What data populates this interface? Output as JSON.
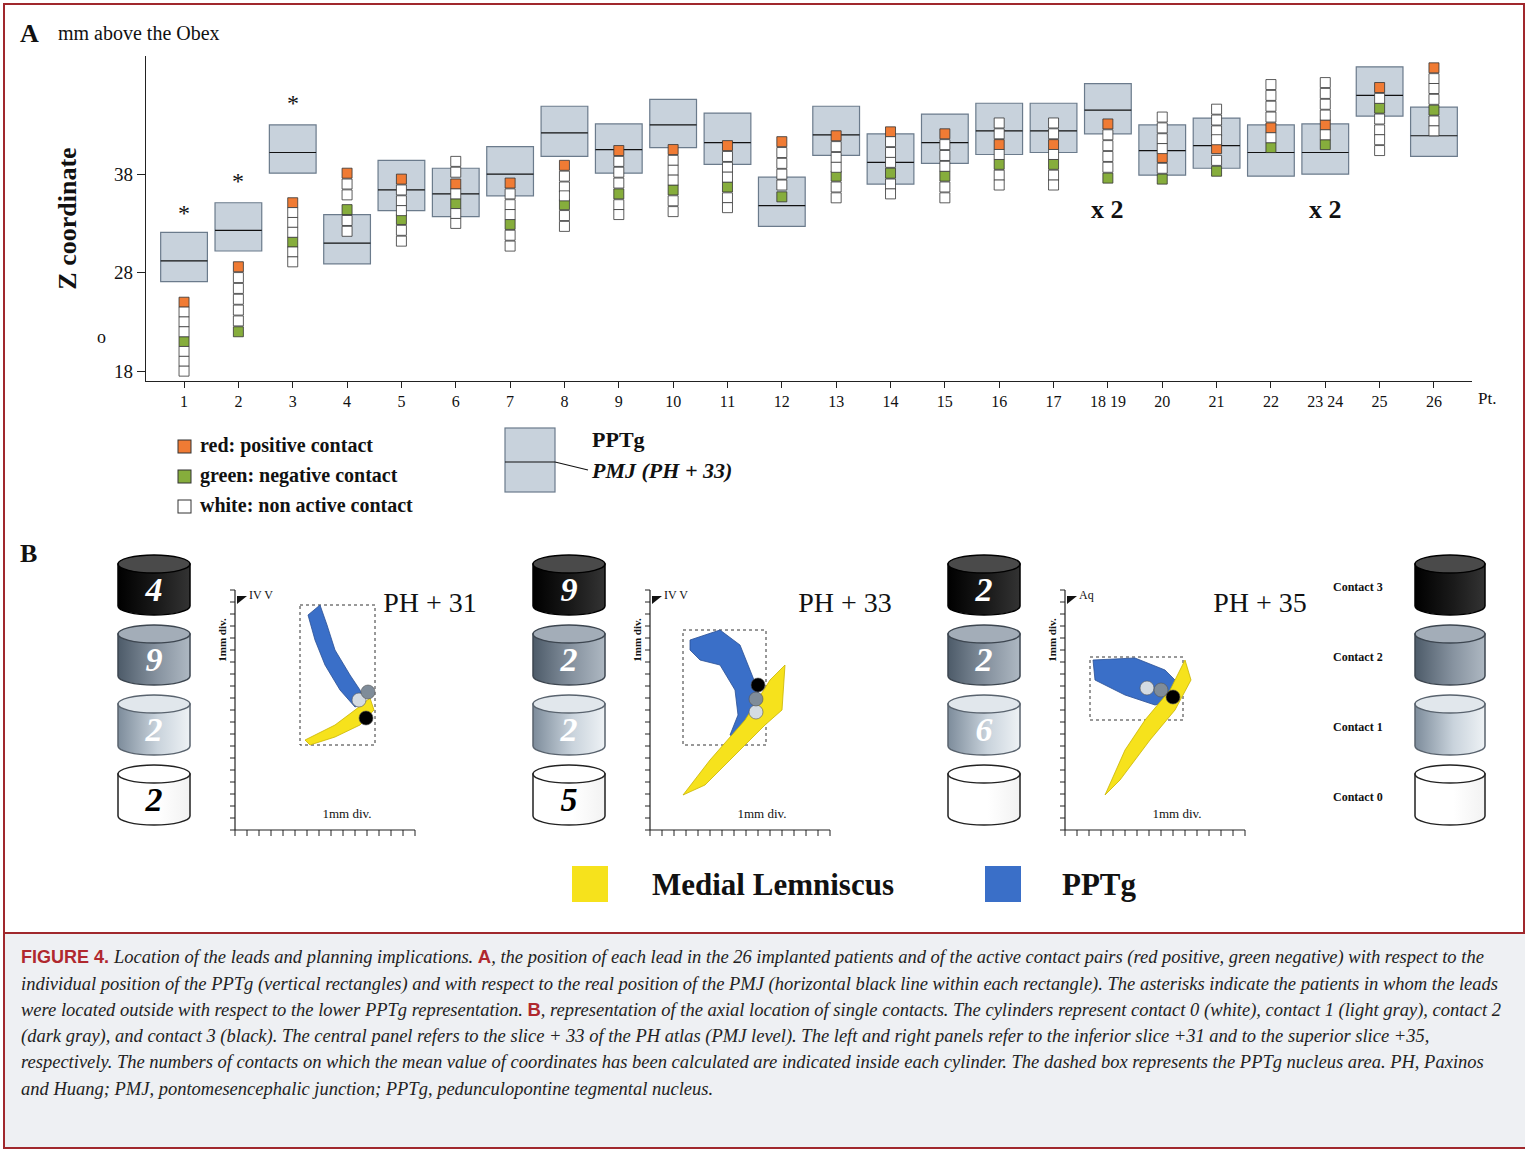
{
  "chart_data": {
    "type": "scatter",
    "panel": "A",
    "y_header": "mm above the Obex",
    "ylabel": "Z coordinate",
    "xlabel": "Pt.",
    "categories": [
      "1",
      "2",
      "3",
      "4",
      "5",
      "6",
      "7",
      "8",
      "9",
      "10",
      "11",
      "12",
      "13",
      "14",
      "15",
      "16",
      "17",
      "18 19",
      "20",
      "21",
      "22",
      "23 24",
      "25",
      "26"
    ],
    "ylim": [
      17,
      50
    ],
    "yticks": [
      18,
      28,
      38
    ],
    "grid": false,
    "legend": "bottom left",
    "series": [
      {
        "name": "red:  positive contact",
        "color": "#f07b34",
        "marker": "square",
        "x": [
          0,
          1,
          2,
          3,
          4,
          5,
          6,
          7,
          8,
          9,
          10,
          11,
          12,
          13,
          14,
          15,
          16,
          17,
          18,
          19,
          20,
          21,
          22,
          23
        ],
        "y": [
          25.0,
          28.6,
          35.1,
          38.1,
          37.5,
          37.0,
          37.1,
          38.9,
          40.4,
          40.5,
          40.9,
          41.3,
          41.9,
          42.3,
          42.1,
          41.0,
          41.0,
          43.1,
          39.7,
          40.6,
          42.7,
          43.0,
          46.8,
          48.8
        ]
      },
      {
        "name": "green: negative contact",
        "color": "#86ad3c",
        "marker": "square",
        "x": [
          0,
          1,
          2,
          3,
          4,
          5,
          6,
          7,
          8,
          9,
          10,
          11,
          12,
          13,
          14,
          15,
          16,
          17,
          18,
          19,
          20,
          21,
          22,
          23
        ],
        "y": [
          21.0,
          22.0,
          31.1,
          34.4,
          33.4,
          35.0,
          32.9,
          34.9,
          36.0,
          36.4,
          36.7,
          35.7,
          37.8,
          38.1,
          37.8,
          39.0,
          39.0,
          37.6,
          37.5,
          38.3,
          40.7,
          41.0,
          44.7,
          44.5
        ]
      },
      {
        "name": "white:  non active contact",
        "color": "#ffffff",
        "marker": "square",
        "x": [
          0,
          0,
          0,
          0,
          0,
          0,
          1,
          1,
          1,
          1,
          1,
          2,
          2,
          2,
          2,
          2,
          3,
          3,
          3,
          3,
          4,
          4,
          4,
          4,
          4,
          5,
          5,
          5,
          5,
          5,
          6,
          6,
          6,
          6,
          6,
          7,
          7,
          7,
          7,
          7,
          8,
          8,
          8,
          8,
          8,
          9,
          9,
          9,
          9,
          9,
          10,
          10,
          10,
          10,
          10,
          11,
          11,
          11,
          11,
          12,
          12,
          12,
          12,
          12,
          13,
          13,
          13,
          13,
          13,
          14,
          14,
          14,
          14,
          14,
          15,
          15,
          15,
          15,
          15,
          16,
          16,
          16,
          16,
          16,
          17,
          17,
          17,
          17,
          18,
          18,
          18,
          18,
          18,
          19,
          19,
          19,
          19,
          19,
          20,
          20,
          20,
          20,
          20,
          21,
          21,
          21,
          21,
          21,
          22,
          22,
          22,
          22,
          22,
          23,
          23,
          23,
          23,
          23
        ],
        "y": [
          24.0,
          23.0,
          22.0,
          20.0,
          19.0,
          18.0,
          27.5,
          26.4,
          25.3,
          24.2,
          23.1,
          34.1,
          33.1,
          32.1,
          30.1,
          29.1,
          37.0,
          35.9,
          33.3,
          32.2,
          36.4,
          35.3,
          34.3,
          32.3,
          31.2,
          39.3,
          38.2,
          36.0,
          34.0,
          33.0,
          36.0,
          34.9,
          33.9,
          31.8,
          30.7,
          37.8,
          36.7,
          35.8,
          33.8,
          32.7,
          39.3,
          38.2,
          37.1,
          34.9,
          33.9,
          39.4,
          38.4,
          37.4,
          35.3,
          34.2,
          39.8,
          38.7,
          37.7,
          35.6,
          34.6,
          40.2,
          39.1,
          38.0,
          36.9,
          40.8,
          39.7,
          38.7,
          36.7,
          35.6,
          41.3,
          40.2,
          39.2,
          37.0,
          36.0,
          41.0,
          39.9,
          38.8,
          36.7,
          35.6,
          43.2,
          42.1,
          40.0,
          37.9,
          36.9,
          43.2,
          42.1,
          40.0,
          37.9,
          36.9,
          42.0,
          40.9,
          39.8,
          38.7,
          43.8,
          42.7,
          41.6,
          40.6,
          38.6,
          44.6,
          43.5,
          42.4,
          41.5,
          39.4,
          47.1,
          46.0,
          44.9,
          43.8,
          41.7,
          47.3,
          46.2,
          45.1,
          44.0,
          42.0,
          45.7,
          43.6,
          42.5,
          41.5,
          40.4,
          47.7,
          46.7,
          45.6,
          43.4,
          42.4
        ]
      }
    ],
    "boxes": {
      "name": "PPTg",
      "line_name": "PMJ (PH + 33)",
      "color": "#c8d2dc",
      "x": [
        0,
        1,
        2,
        3,
        4,
        5,
        6,
        7,
        8,
        9,
        10,
        11,
        12,
        13,
        14,
        15,
        16,
        17,
        18,
        19,
        20,
        21,
        22,
        23
      ],
      "low": [
        27.1,
        30.2,
        38.1,
        28.9,
        34.3,
        33.7,
        35.8,
        39.8,
        38.1,
        40.7,
        39.0,
        32.7,
        39.9,
        37.0,
        39.1,
        40.0,
        40.2,
        42.1,
        37.9,
        38.6,
        37.8,
        38.0,
        43.9,
        39.8
      ],
      "high": [
        32.1,
        35.1,
        43.0,
        33.9,
        39.4,
        38.6,
        40.8,
        44.9,
        43.1,
        45.6,
        44.2,
        37.7,
        44.9,
        42.1,
        44.1,
        45.2,
        45.2,
        47.2,
        43.0,
        43.7,
        43.0,
        43.1,
        48.9,
        44.8
      ],
      "line": [
        29.2,
        32.3,
        40.2,
        31.0,
        36.4,
        36.0,
        38.0,
        42.2,
        40.5,
        43.0,
        41.2,
        34.8,
        42.0,
        39.2,
        41.2,
        42.4,
        42.4,
        44.5,
        40.4,
        40.9,
        40.2,
        40.2,
        46.0,
        41.9
      ]
    },
    "annotations": [
      {
        "text": "*",
        "x": 0,
        "y": 34.1
      },
      {
        "text": "*",
        "x": 1,
        "y": 37.3
      },
      {
        "text": "*",
        "x": 2,
        "y": 45.2
      },
      {
        "text": "x 2",
        "x": 17,
        "y": 34.4
      },
      {
        "text": "x 2",
        "x": 21,
        "y": 34.4
      },
      {
        "text": "o",
        "y": 21.5
      }
    ]
  },
  "panel_b": {
    "letter": "B",
    "slices": [
      {
        "title": "PH + 31",
        "landmark": "IV V",
        "axis_label": "1mm div.",
        "counts": [
          4,
          9,
          2,
          2
        ]
      },
      {
        "title": "PH + 33",
        "landmark": "IV V",
        "axis_label": "1mm div.",
        "counts": [
          9,
          2,
          2,
          5
        ]
      },
      {
        "title": "PH + 35",
        "landmark": "Aq",
        "axis_label": "1mm div.",
        "counts": [
          2,
          2,
          6,
          null
        ]
      }
    ],
    "key": [
      "Contact 3",
      "Contact 2",
      "Contact 1",
      "Contact 0"
    ],
    "legend": [
      {
        "label": "Medial Lemniscus",
        "color": "#f6e21c"
      },
      {
        "label": "PPTg",
        "color": "#3a6fc8"
      }
    ]
  },
  "caption": {
    "label": "FIGURE 4.",
    "segments": [
      {
        "text": "Location of the leads and planning implications. ",
        "bold": false
      },
      {
        "text": "A",
        "bold": true
      },
      {
        "text": ", the position of each lead in the 26 implanted patients and of the active contact pairs (red positive, green negative) with respect to the individual position of the PPTg (vertical rectangles) and with respect to the real position of the PMJ (horizontal black line within each rectangle). The asterisks indicate the patients in whom the leads were located outside with respect to the lower PPTg representation. ",
        "bold": false
      },
      {
        "text": "B",
        "bold": true
      },
      {
        "text": ", representation of the axial location of single contacts. The cylinders represent contact 0 (white), contact 1 (light gray), contact 2 (dark gray), and contact 3 (black). The central panel refers to the slice + 33 of the PH atlas (PMJ level). The left and right panels refer to the inferior slice +31 and to the superior slice +35, respectively. The numbers of contacts on which the mean value of coordinates has been calculated are indicated inside each cylinder. The dashed box represents the PPTg nucleus area. PH, Paxinos and Huang; PMJ, pontomesencephalic junction; PPTg, pedunculopontine tegmental nucleus.",
        "bold": false
      }
    ]
  }
}
